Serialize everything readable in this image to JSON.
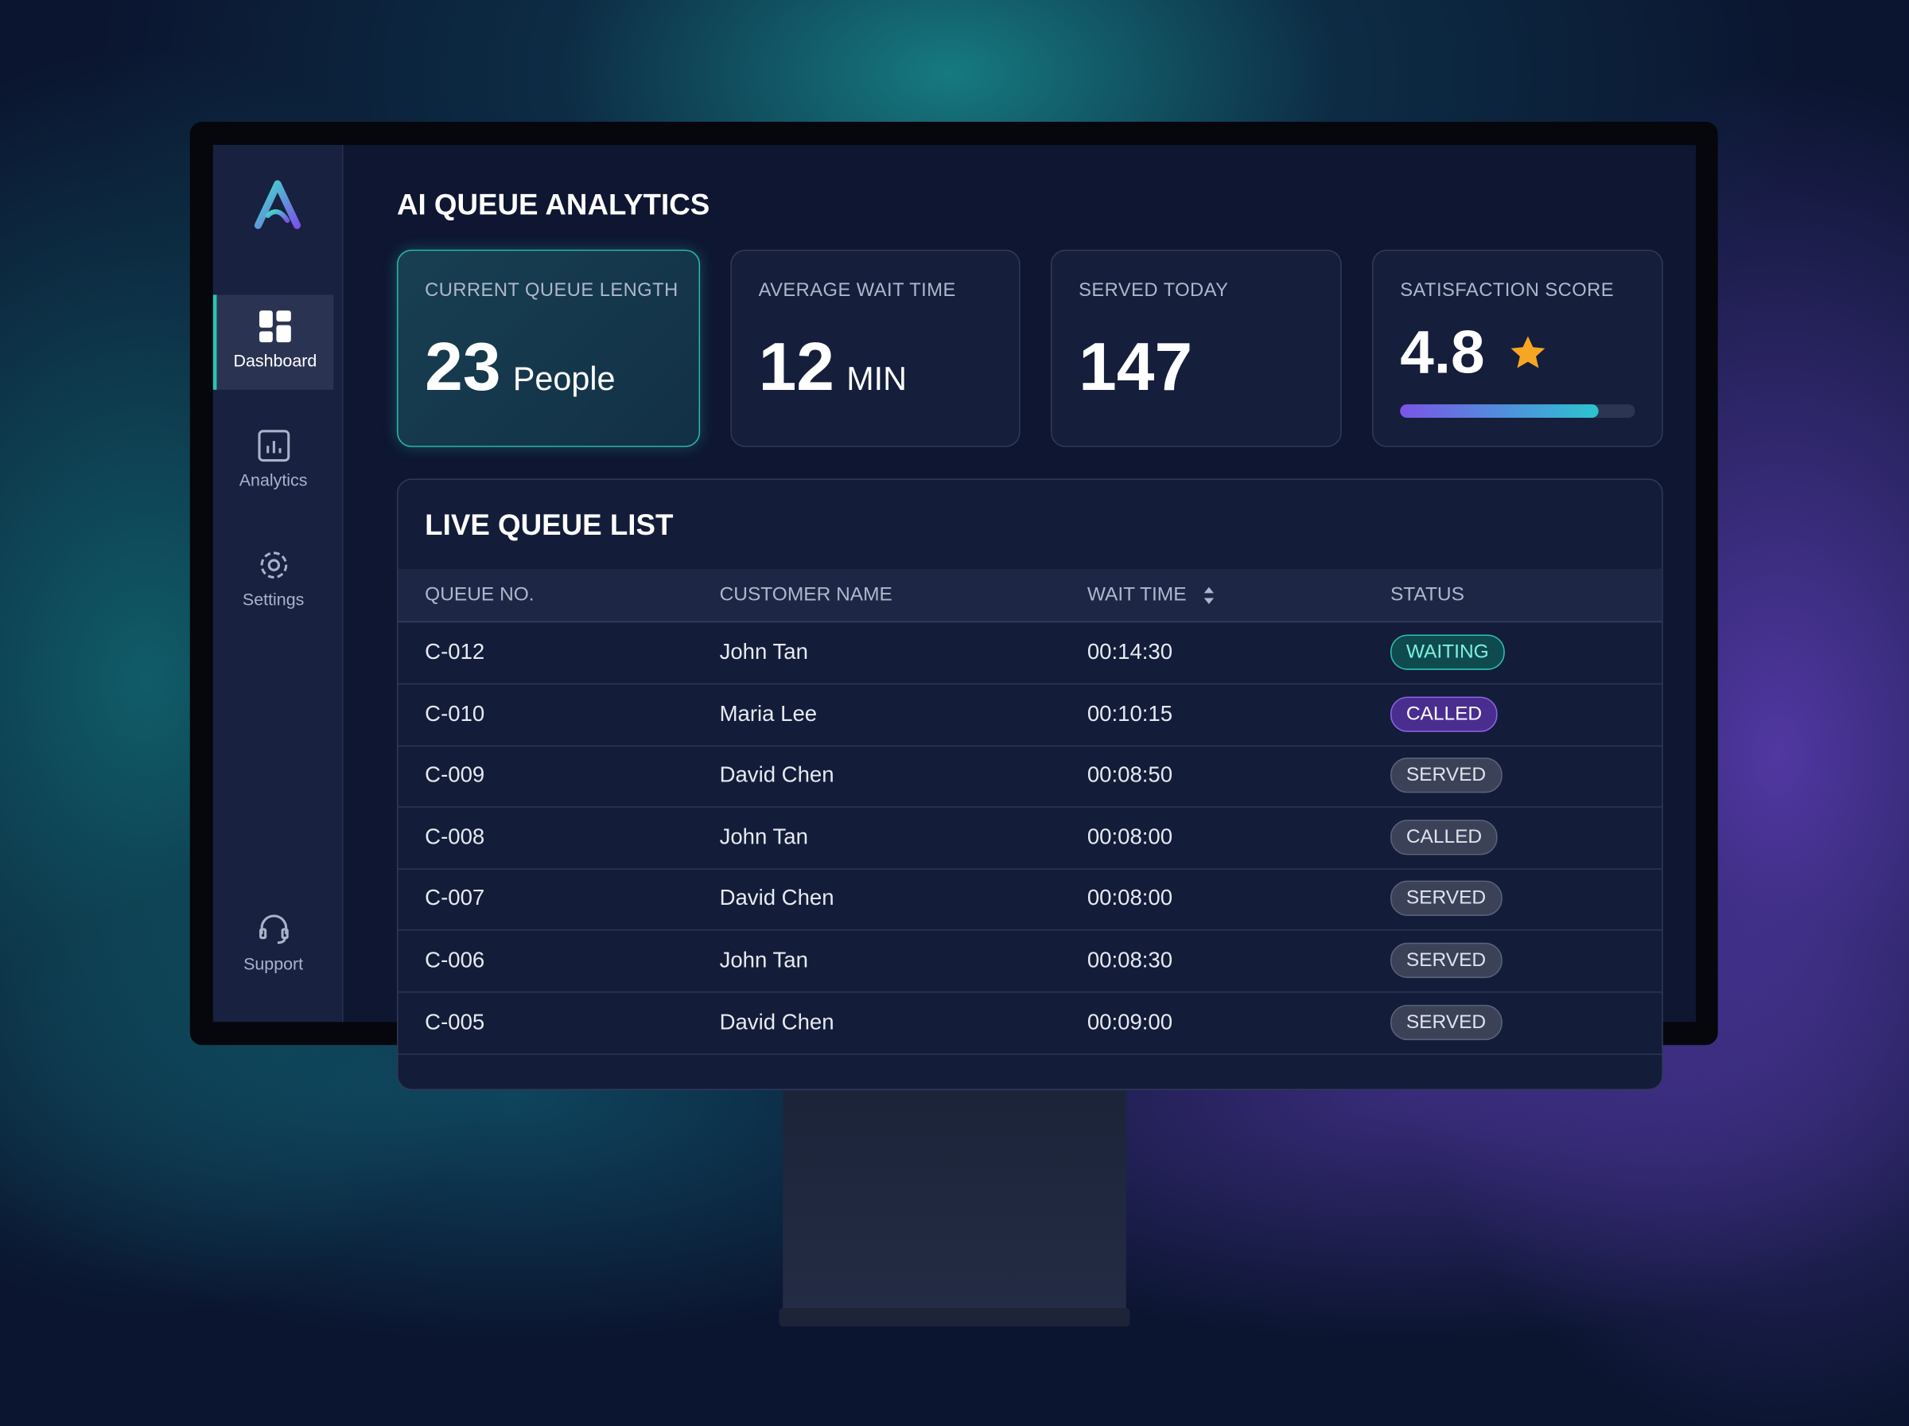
{
  "app": {
    "title": "AI QUEUE ANALYTICS"
  },
  "sidebar": {
    "items": [
      "Dashboard",
      "Analytics",
      "Settings"
    ],
    "support": "Support"
  },
  "stats": [
    {
      "label": "CURRENT QUEUE LENGTH",
      "value": "23",
      "unit": "People"
    },
    {
      "label": "AVERAGE WAIT TIME",
      "value": "12",
      "unit": "MIN"
    },
    {
      "label": "SERVED TODAY",
      "value": "147"
    },
    {
      "label": "SATISFACTION SCORE",
      "value": "4.8"
    }
  ],
  "queue": {
    "title": "LIVE QUEUE LIST",
    "columns": [
      "QUEUE NO.",
      "CUSTOMER NAME",
      "WAIT TIME",
      "STATUS"
    ],
    "rows": [
      [
        "C-012",
        "John Tan",
        "00:14:30",
        "WAITING"
      ],
      [
        "C-010",
        "Maria Lee",
        "00:10:15",
        "CALLED"
      ],
      [
        "C-009",
        "David Chen",
        "00:08:50",
        "SERVED"
      ],
      [
        "C-008",
        "John Tan",
        "00:08:00",
        "CALLED"
      ],
      [
        "C-007",
        "David Chen",
        "00:08:00",
        "SERVED"
      ],
      [
        "C-006",
        "John Tan",
        "00:08:30",
        "SERVED"
      ],
      [
        "C-005",
        "David Chen",
        "00:09:00",
        "SERVED"
      ]
    ]
  }
}
